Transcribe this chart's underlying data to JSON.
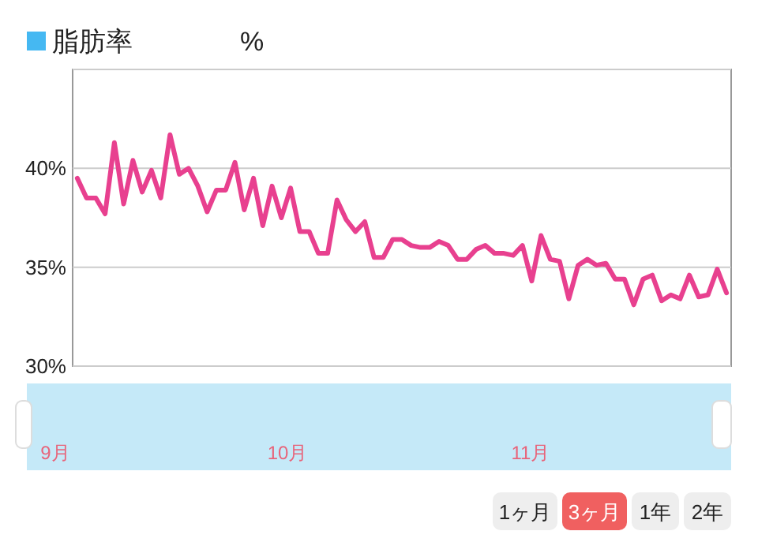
{
  "chart_data": [
    {
      "type": "line",
      "title": "脂肪率",
      "subtitle": "%",
      "categories": [
        null,
        null,
        null,
        null,
        null,
        null,
        null,
        null,
        null,
        null,
        null,
        null,
        null,
        null,
        null,
        null,
        null,
        null,
        null,
        null,
        null,
        null,
        null,
        null,
        null,
        null,
        null,
        null,
        null,
        null,
        null,
        null,
        null,
        null,
        null,
        null,
        null,
        null,
        null,
        null,
        null,
        null,
        null,
        null,
        null,
        null,
        null,
        null,
        null,
        null,
        null,
        null,
        null,
        null,
        null,
        null,
        null,
        null,
        null,
        null,
        null,
        null,
        null,
        null,
        null,
        null,
        null,
        null,
        null,
        null,
        null
      ],
      "series": [
        {
          "color": "#e8408f",
          "values": [
            39.5,
            38.5,
            38.5,
            37.7,
            41.3,
            38.2,
            40.4,
            38.8,
            39.9,
            38.5,
            41.7,
            39.7,
            40.0,
            39.1,
            37.8,
            38.9,
            38.9,
            40.3,
            37.9,
            39.5,
            37.1,
            39.1,
            37.5,
            39.0,
            36.8,
            36.8,
            35.7,
            35.7,
            38.4,
            37.4,
            36.8,
            37.3,
            35.5,
            35.5,
            36.4,
            36.4,
            36.1,
            36.0,
            36.0,
            36.3,
            36.1,
            35.4,
            35.4,
            35.9,
            36.1,
            35.7,
            35.7,
            35.6,
            36.1,
            34.3,
            36.6,
            35.4,
            35.3,
            33.4,
            35.1,
            35.4,
            35.1,
            35.2,
            34.4,
            34.4,
            33.1,
            34.4,
            34.6,
            33.3,
            33.6,
            33.4,
            34.6,
            33.5,
            33.6,
            34.9,
            33.7
          ]
        }
      ],
      "ylim": [
        30,
        45
      ],
      "yticks": [
        {
          "value": 30,
          "label": "30%"
        },
        {
          "value": 35,
          "label": "35%"
        },
        {
          "value": 40,
          "label": "40%"
        },
        {
          "value": 45,
          "label": null
        }
      ],
      "tick_labels": "y",
      "grid": "y",
      "line_style": "solid",
      "marker": "none"
    },
    {
      "type": "other",
      "categories": [
        "9月",
        "10月",
        "11月"
      ],
      "annotations": [
        "1ヶ月",
        "3ヶ月",
        "1年",
        "2年"
      ]
    }
  ]
}
